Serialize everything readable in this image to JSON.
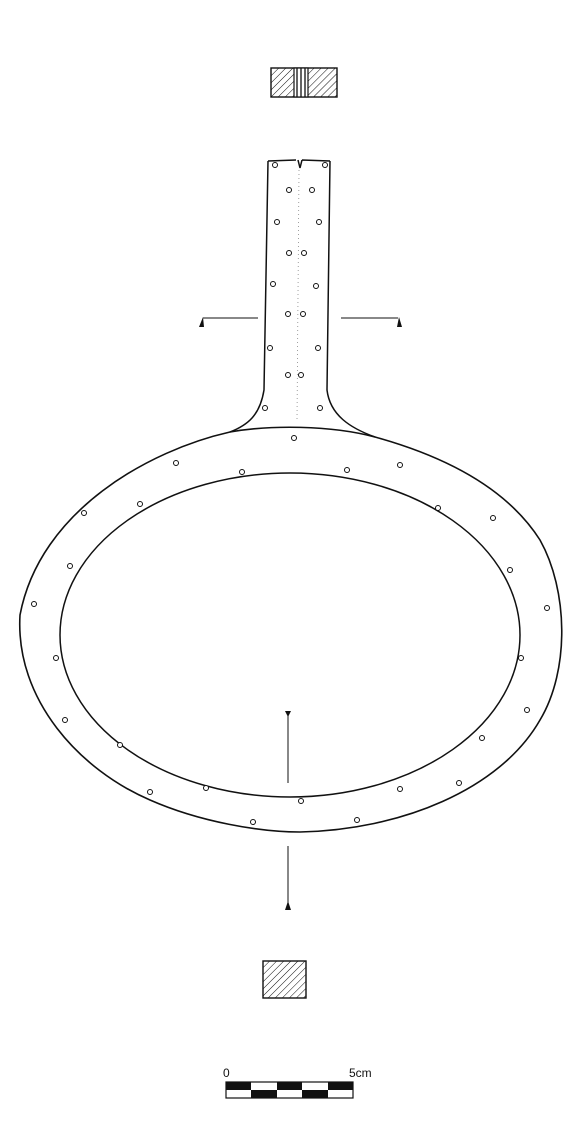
{
  "scale_bar": {
    "start_label": "0",
    "end_label": "5cm",
    "segments": 5
  },
  "colors": {
    "ink": "#111111",
    "paper": "#ffffff"
  }
}
